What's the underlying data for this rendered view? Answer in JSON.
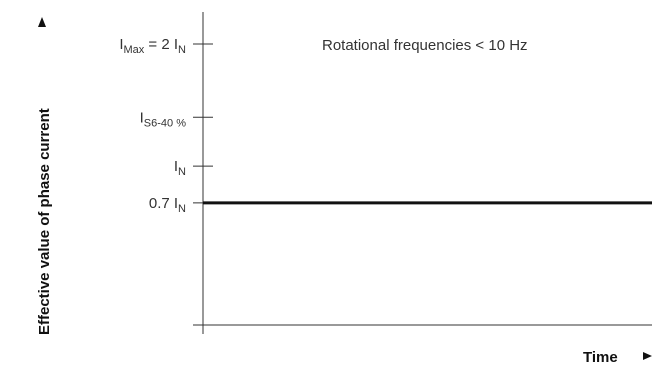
{
  "chart_data": {
    "type": "line",
    "title": "",
    "xlabel": "Time",
    "ylabel": "Effective value of phase current",
    "annotation": "Rotational frequencies < 10 Hz",
    "y_ticks": [
      {
        "main": "I",
        "sub": "Max",
        "suffix": " = 2 I",
        "sub2": "N",
        "value": 2.0
      },
      {
        "main": "I",
        "sub": "S6-40 %",
        "suffix": "",
        "sub2": "",
        "value": 1.4
      },
      {
        "main": "I",
        "sub": "N",
        "suffix": "",
        "sub2": "",
        "value": 1.0
      },
      {
        "main": "0.7 I",
        "sub": "N",
        "suffix": "",
        "sub2": "",
        "value": 0.7
      }
    ],
    "series": [
      {
        "x": [
          0,
          1
        ],
        "values": [
          0.7,
          0.7
        ]
      }
    ],
    "xlim": [
      0,
      1
    ],
    "ylim": [
      -0.3,
      2.0
    ],
    "grid": false,
    "colors": {
      "axis": "#333333",
      "line": "#111111",
      "text": "#333333"
    }
  }
}
